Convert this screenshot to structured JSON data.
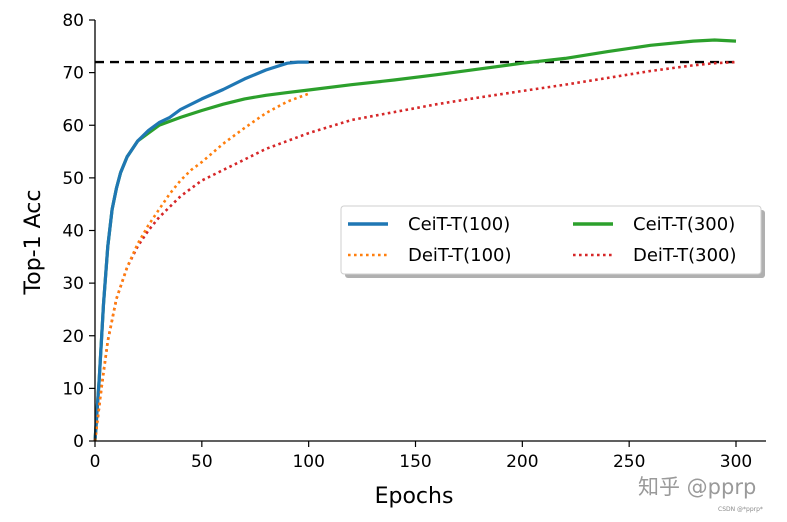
{
  "chart_data": {
    "type": "line",
    "xlabel": "Epochs",
    "ylabel": "Top-1 Acc",
    "xlim": [
      0,
      300
    ],
    "ylim": [
      0,
      80
    ],
    "x_ticks": [
      0,
      50,
      100,
      150,
      200,
      250,
      300
    ],
    "y_ticks": [
      0,
      10,
      20,
      30,
      40,
      50,
      60,
      70,
      80
    ],
    "grid": false,
    "reference_line": {
      "y": 72,
      "style": "dashed",
      "color": "#000000"
    },
    "legend_position": "center-right",
    "series": [
      {
        "name": "CeiT-T(100)",
        "style": "solid",
        "color": "#1f77b4",
        "x": [
          0,
          2,
          4,
          6,
          8,
          10,
          12,
          15,
          20,
          25,
          30,
          35,
          40,
          50,
          60,
          70,
          80,
          90,
          95,
          100
        ],
        "y": [
          0,
          12,
          26,
          37,
          44,
          48,
          51,
          54,
          57,
          59,
          60.5,
          61.5,
          63,
          65,
          66.8,
          68.8,
          70.5,
          71.8,
          72,
          72
        ]
      },
      {
        "name": "DeiT-T(100)",
        "style": "dotted",
        "color": "#ff7f0e",
        "x": [
          0,
          3,
          6,
          10,
          15,
          20,
          25,
          30,
          35,
          40,
          45,
          50,
          60,
          70,
          80,
          90,
          100
        ],
        "y": [
          0,
          10,
          19,
          27,
          33,
          37.5,
          41,
          44,
          47,
          49.5,
          51.5,
          53,
          56.5,
          59.5,
          62.3,
          64.5,
          66
        ]
      },
      {
        "name": "CeiT-T(300)",
        "style": "solid",
        "color": "#2ca02c",
        "x": [
          0,
          2,
          4,
          6,
          8,
          10,
          12,
          15,
          20,
          25,
          30,
          40,
          50,
          60,
          70,
          80,
          90,
          100,
          120,
          140,
          160,
          180,
          200,
          220,
          240,
          260,
          280,
          290,
          300
        ],
        "y": [
          0,
          12,
          26,
          37,
          44,
          48,
          51,
          54,
          57,
          58.5,
          60,
          61.5,
          62.8,
          64,
          65,
          65.7,
          66.2,
          66.7,
          67.7,
          68.6,
          69.6,
          70.7,
          71.8,
          72.7,
          74,
          75.2,
          76,
          76.2,
          76
        ]
      },
      {
        "name": "DeiT-T(300)",
        "style": "dotted",
        "color": "#d62728",
        "x": [
          0,
          3,
          6,
          10,
          15,
          20,
          25,
          30,
          40,
          50,
          60,
          70,
          80,
          100,
          120,
          140,
          160,
          180,
          200,
          220,
          240,
          260,
          280,
          290,
          300
        ],
        "y": [
          0,
          10,
          19,
          27,
          33,
          37,
          40,
          42.5,
          46.5,
          49.5,
          51.5,
          53.5,
          55.5,
          58.5,
          61,
          62.5,
          64,
          65.3,
          66.5,
          67.7,
          69,
          70.3,
          71.4,
          71.8,
          72
        ]
      }
    ]
  },
  "watermark": {
    "main": "知乎 @pprp",
    "small": "CSDN @*pprp*"
  }
}
